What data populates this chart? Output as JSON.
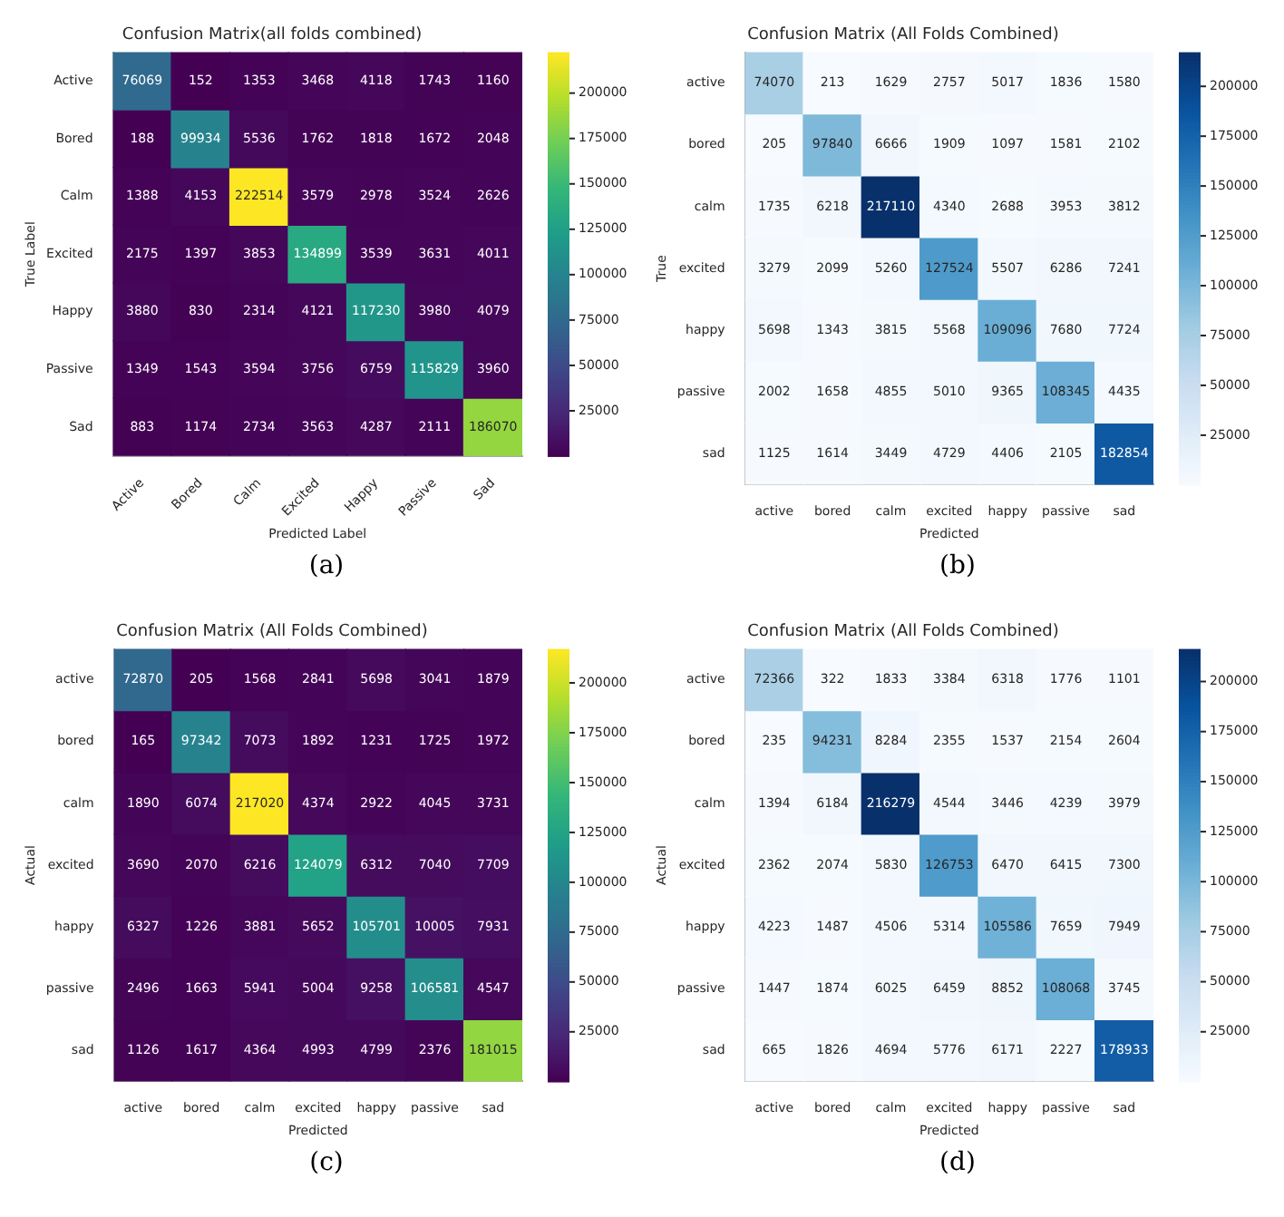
{
  "chart_data": [
    {
      "type": "heatmap",
      "title": "Confusion Matrix(all folds combined)",
      "xlabel": "Predicted Label",
      "ylabel": "True Label",
      "categories": [
        "Active",
        "Bored",
        "Calm",
        "Excited",
        "Happy",
        "Passive",
        "Sad"
      ],
      "y_categories": [
        "Active",
        "Bored",
        "Calm",
        "Excited",
        "Happy",
        "Passive",
        "Sad"
      ],
      "cells": [
        [
          76069,
          152,
          1353,
          3468,
          4118,
          1743,
          1160
        ],
        [
          188,
          99934,
          5536,
          1762,
          1818,
          1672,
          2048
        ],
        [
          1388,
          4153,
          222514,
          3579,
          2978,
          3524,
          2626
        ],
        [
          2175,
          1397,
          3853,
          134899,
          3539,
          3631,
          4011
        ],
        [
          3880,
          830,
          2314,
          4121,
          117230,
          3980,
          4079
        ],
        [
          1349,
          1543,
          3594,
          3756,
          6759,
          115829,
          3960
        ],
        [
          883,
          1174,
          2734,
          3563,
          4287,
          2111,
          186070
        ]
      ],
      "clim": [
        152,
        222514
      ],
      "cticks": [
        25000,
        50000,
        75000,
        100000,
        125000,
        150000,
        175000,
        200000
      ],
      "data_labels": true,
      "annotations": [
        "(a)"
      ]
    },
    {
      "type": "heatmap",
      "title": "Confusion Matrix (All Folds Combined)",
      "xlabel": "Predicted",
      "ylabel": "True",
      "categories": [
        "active",
        "bored",
        "calm",
        "excited",
        "happy",
        "passive",
        "sad"
      ],
      "y_categories": [
        "active",
        "bored",
        "calm",
        "excited",
        "happy",
        "passive",
        "sad"
      ],
      "cells": [
        [
          74070,
          213,
          1629,
          2757,
          5017,
          1836,
          1580
        ],
        [
          205,
          97840,
          6666,
          1909,
          1097,
          1581,
          2102
        ],
        [
          1735,
          6218,
          217110,
          4340,
          2688,
          3953,
          3812
        ],
        [
          3279,
          2099,
          5260,
          127524,
          5507,
          6286,
          7241
        ],
        [
          5698,
          1343,
          3815,
          5568,
          109096,
          7680,
          7724
        ],
        [
          2002,
          1658,
          4855,
          5010,
          9365,
          108345,
          4435
        ],
        [
          1125,
          1614,
          3449,
          4729,
          4406,
          2105,
          182854
        ]
      ],
      "clim": [
        205,
        217110
      ],
      "cticks": [
        25000,
        50000,
        75000,
        100000,
        125000,
        150000,
        175000,
        200000
      ],
      "data_labels": true,
      "annotations": [
        "(b)"
      ]
    },
    {
      "type": "heatmap",
      "title": "Confusion Matrix (All Folds Combined)",
      "xlabel": "Predicted",
      "ylabel": "Actual",
      "categories": [
        "active",
        "bored",
        "calm",
        "excited",
        "happy",
        "passive",
        "sad"
      ],
      "y_categories": [
        "active",
        "bored",
        "calm",
        "excited",
        "happy",
        "passive",
        "sad"
      ],
      "cells": [
        [
          72870,
          205,
          1568,
          2841,
          5698,
          3041,
          1879
        ],
        [
          165,
          97342,
          7073,
          1892,
          1231,
          1725,
          1972
        ],
        [
          1890,
          6074,
          217020,
          4374,
          2922,
          4045,
          3731
        ],
        [
          3690,
          2070,
          6216,
          124079,
          6312,
          7040,
          7709
        ],
        [
          6327,
          1226,
          3881,
          5652,
          105701,
          10005,
          7931
        ],
        [
          2496,
          1663,
          5941,
          5004,
          9258,
          106581,
          4547
        ],
        [
          1126,
          1617,
          4364,
          4993,
          4799,
          2376,
          181015
        ]
      ],
      "clim": [
        165,
        217020
      ],
      "cticks": [
        25000,
        50000,
        75000,
        100000,
        125000,
        150000,
        175000,
        200000
      ],
      "data_labels": true,
      "annotations": [
        "(c)"
      ]
    },
    {
      "type": "heatmap",
      "title": "Confusion Matrix (All Folds Combined)",
      "xlabel": "Predicted",
      "ylabel": "Actual",
      "categories": [
        "active",
        "bored",
        "calm",
        "excited",
        "happy",
        "passive",
        "sad"
      ],
      "y_categories": [
        "active",
        "bored",
        "calm",
        "excited",
        "happy",
        "passive",
        "sad"
      ],
      "cells": [
        [
          72366,
          322,
          1833,
          3384,
          6318,
          1776,
          1101
        ],
        [
          235,
          94231,
          8284,
          2355,
          1537,
          2154,
          2604
        ],
        [
          1394,
          6184,
          216279,
          4544,
          3446,
          4239,
          3979
        ],
        [
          2362,
          2074,
          5830,
          126753,
          6470,
          6415,
          7300
        ],
        [
          4223,
          1487,
          4506,
          5314,
          105586,
          7659,
          7949
        ],
        [
          1447,
          1874,
          6025,
          6459,
          8852,
          108068,
          3745
        ],
        [
          665,
          1826,
          4694,
          5776,
          6171,
          2227,
          178933
        ]
      ],
      "clim": [
        235,
        216279
      ],
      "cticks": [
        25000,
        50000,
        75000,
        100000,
        125000,
        150000,
        175000,
        200000
      ],
      "data_labels": true,
      "annotations": [
        "(d)"
      ]
    }
  ]
}
